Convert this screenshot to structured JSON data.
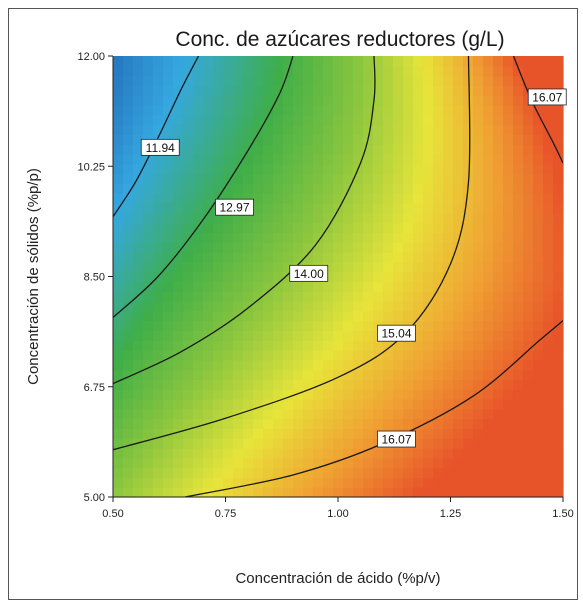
{
  "chart_data": {
    "type": "contour",
    "title": "Conc. de azúcares reductores (g/L)",
    "xlabel": "Concentración de ácido (%p/v)",
    "ylabel": "Concentración de sólidos (%p/p)",
    "xlim": [
      0.5,
      1.5
    ],
    "ylim": [
      5.0,
      12.0
    ],
    "x_ticks": [
      "0.50",
      "0.75",
      "1.00",
      "1.25",
      "1.50"
    ],
    "y_ticks": [
      "5.00",
      "6.75",
      "8.50",
      "10.25",
      "12.00"
    ],
    "color_scale": [
      "#1f5fb0",
      "#35a8e0",
      "#3fae48",
      "#8cc63e",
      "#e8e43a",
      "#f0a033",
      "#e8542a"
    ],
    "contour_levels": [
      {
        "label": "11.94",
        "points": [
          [
            0.5,
            9.45
          ],
          [
            0.55,
            10.0
          ],
          [
            0.6,
            10.7
          ],
          [
            0.65,
            11.45
          ],
          [
            0.69,
            12.0
          ]
        ]
      },
      {
        "label": "12.97",
        "points": [
          [
            0.5,
            7.85
          ],
          [
            0.6,
            8.5
          ],
          [
            0.7,
            9.4
          ],
          [
            0.8,
            10.5
          ],
          [
            0.87,
            11.4
          ],
          [
            0.9,
            12.0
          ]
        ]
      },
      {
        "label": "14.00",
        "points": [
          [
            0.5,
            6.8
          ],
          [
            0.65,
            7.3
          ],
          [
            0.8,
            8.0
          ],
          [
            0.95,
            9.0
          ],
          [
            1.05,
            10.3
          ],
          [
            1.08,
            11.3
          ],
          [
            1.08,
            12.0
          ]
        ]
      },
      {
        "label": "15.04",
        "points": [
          [
            0.5,
            5.75
          ],
          [
            0.75,
            6.25
          ],
          [
            1.0,
            6.9
          ],
          [
            1.15,
            7.6
          ],
          [
            1.25,
            8.7
          ],
          [
            1.29,
            10.0
          ],
          [
            1.29,
            12.0
          ]
        ]
      },
      {
        "label": "16.07",
        "points": [
          [
            0.66,
            5.0
          ],
          [
            0.9,
            5.35
          ],
          [
            1.1,
            5.85
          ],
          [
            1.3,
            6.6
          ],
          [
            1.45,
            7.5
          ],
          [
            1.5,
            7.8
          ]
        ]
      },
      {
        "label": "16.07",
        "points": [
          [
            1.39,
            12.0
          ],
          [
            1.43,
            11.3
          ],
          [
            1.48,
            10.6
          ],
          [
            1.5,
            10.3
          ]
        ]
      }
    ],
    "contour_labels": [
      {
        "text": "11.94",
        "x": 0.605,
        "y": 10.55
      },
      {
        "text": "12.97",
        "x": 0.77,
        "y": 9.6
      },
      {
        "text": "14.00",
        "x": 0.935,
        "y": 8.55
      },
      {
        "text": "15.04",
        "x": 1.13,
        "y": 7.6
      },
      {
        "text": "16.07",
        "x": 1.13,
        "y": 5.92
      },
      {
        "text": "16.07",
        "x": 1.465,
        "y": 11.35
      }
    ]
  }
}
